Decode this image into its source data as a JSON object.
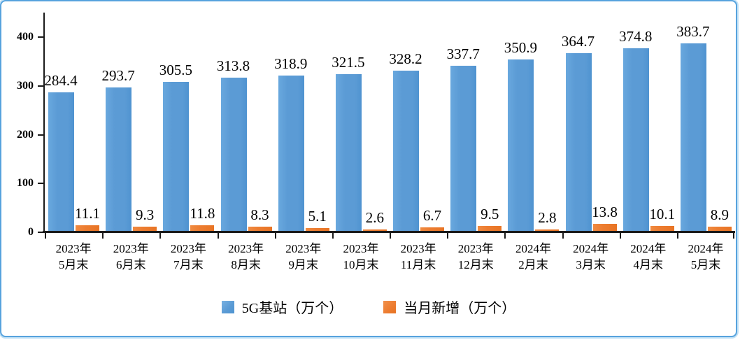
{
  "chart_data": {
    "type": "bar",
    "grouped": true,
    "categories": [
      {
        "line1": "2023年",
        "line2": "5月末"
      },
      {
        "line1": "2023年",
        "line2": "6月末"
      },
      {
        "line1": "2023年",
        "line2": "7月末"
      },
      {
        "line1": "2023年",
        "line2": "8月末"
      },
      {
        "line1": "2023年",
        "line2": "9月末"
      },
      {
        "line1": "2023年",
        "line2": "10月末"
      },
      {
        "line1": "2023年",
        "line2": "11月末"
      },
      {
        "line1": "2023年",
        "line2": "12月末"
      },
      {
        "line1": "2024年",
        "line2": "2月末"
      },
      {
        "line1": "2024年",
        "line2": "3月末"
      },
      {
        "line1": "2024年",
        "line2": "4月末"
      },
      {
        "line1": "2024年",
        "line2": "5月末"
      }
    ],
    "series": [
      {
        "name": "5G基站（万个）",
        "color": "#5B9BD5",
        "values": [
          284.4,
          293.7,
          305.5,
          313.8,
          318.9,
          321.5,
          328.2,
          337.7,
          350.9,
          364.7,
          374.8,
          383.7
        ]
      },
      {
        "name": "当月新增（万个）",
        "color": "#ED7D31",
        "values": [
          11.1,
          9.3,
          11.8,
          8.3,
          5.1,
          2.6,
          6.7,
          9.5,
          2.8,
          13.8,
          10.1,
          8.9
        ]
      }
    ],
    "title": "",
    "xlabel": "",
    "ylabel": "",
    "ylim": [
      0,
      440
    ],
    "yticks": [
      0,
      100,
      200,
      300,
      400
    ],
    "grid": false,
    "legend_position": "bottom",
    "data_labels": true
  }
}
